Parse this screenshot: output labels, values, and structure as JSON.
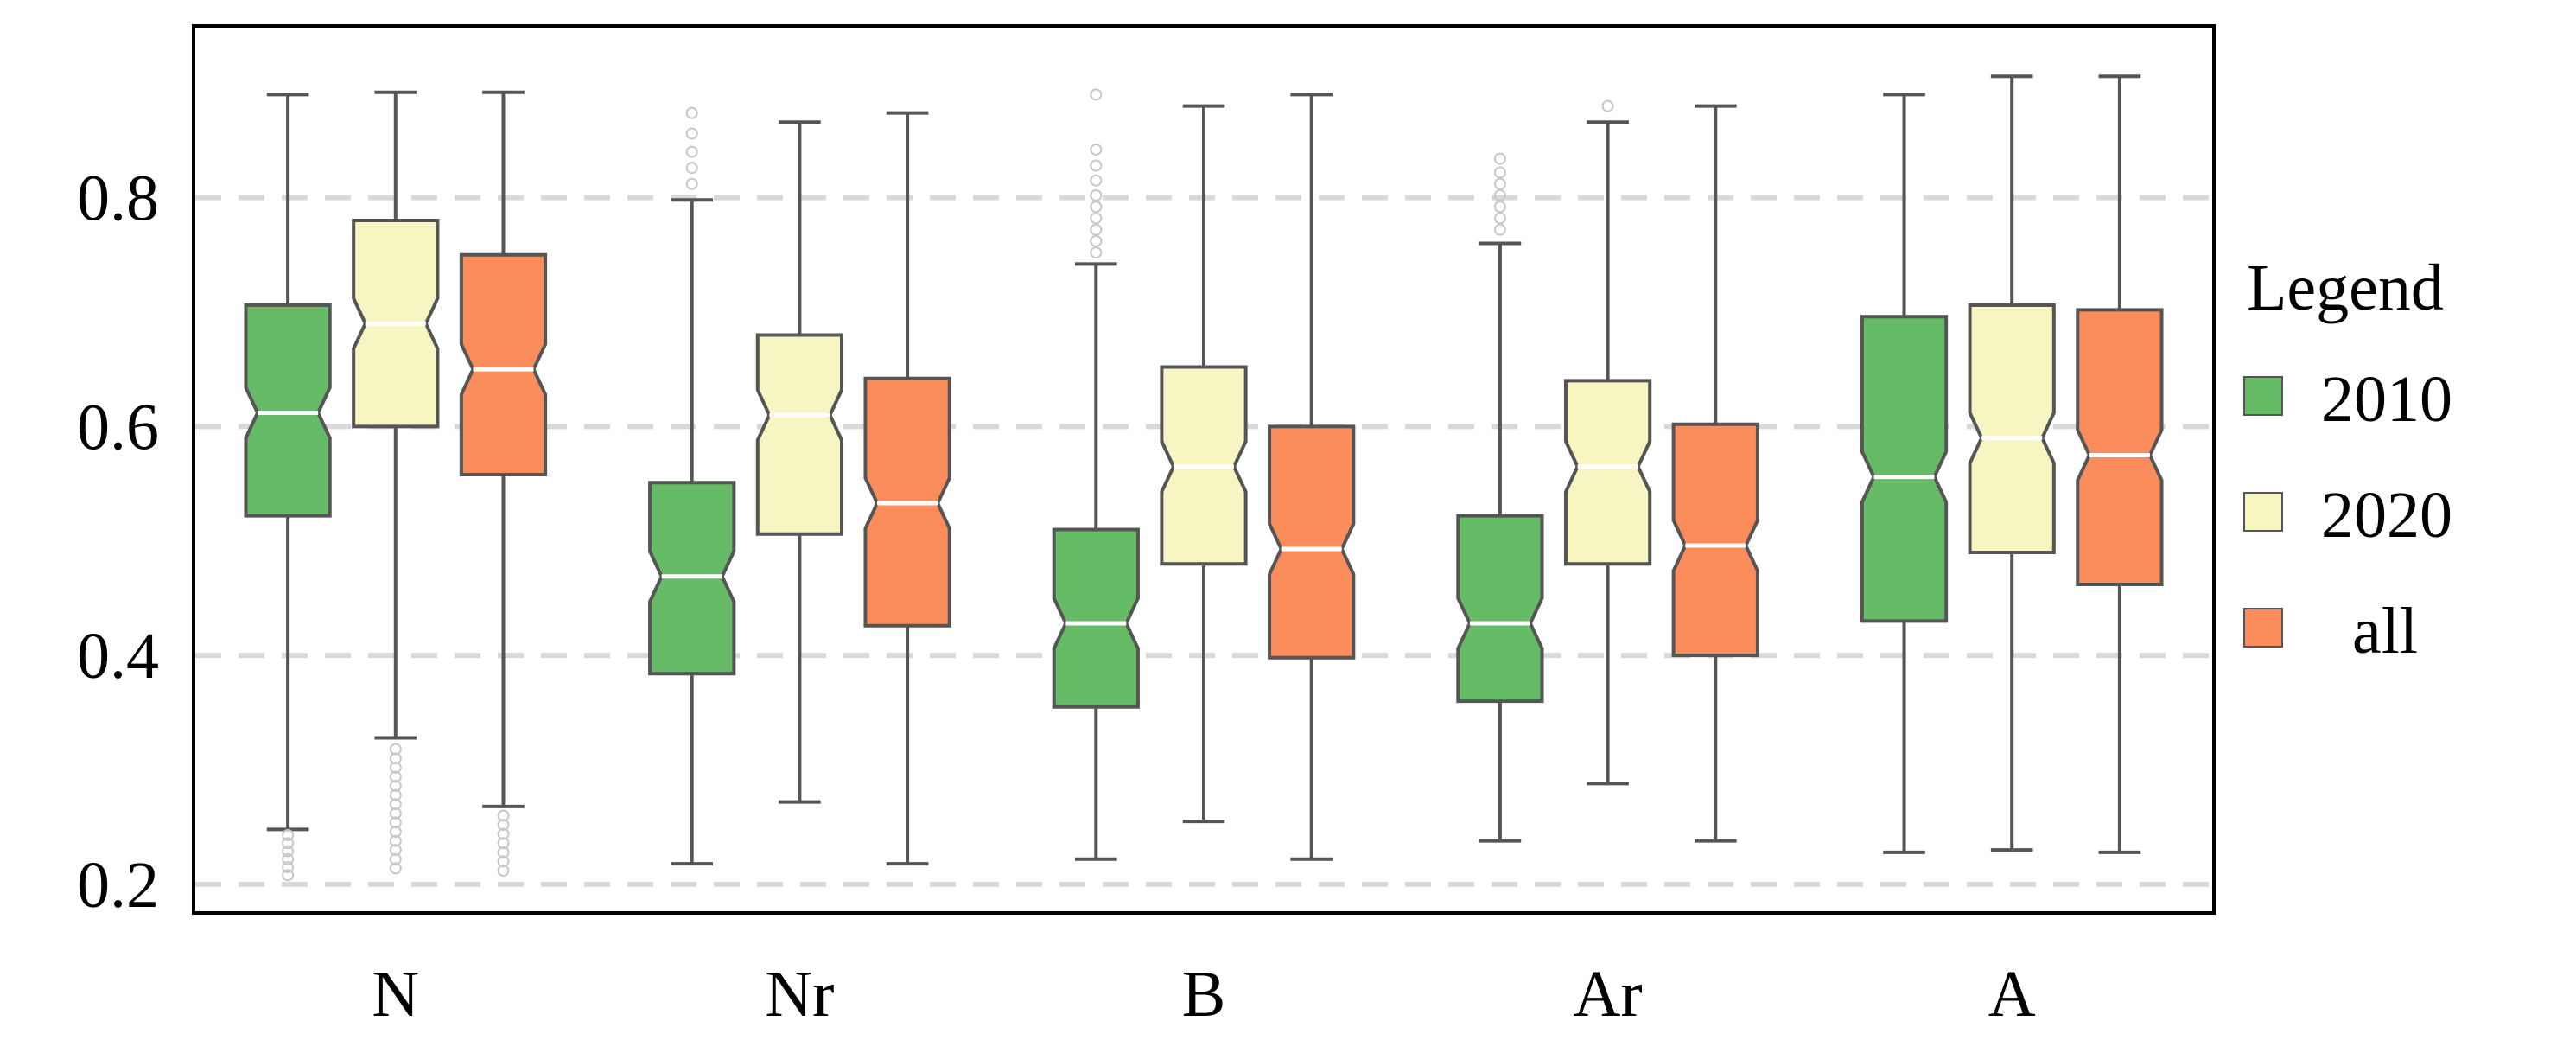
{
  "chart_data": {
    "type": "boxplot",
    "notched": true,
    "categories": [
      "N",
      "Nr",
      "B",
      "Ar",
      "A"
    ],
    "y_ticks": [
      "0.2",
      "0.4",
      "0.6",
      "0.8"
    ],
    "ylim": [
      0.175,
      0.95
    ],
    "grid": "horizontal dashed",
    "legend": {
      "title": "Legend",
      "placement": "right, outside plot",
      "entries": [
        "2010",
        "2020",
        "all"
      ]
    },
    "series": [
      {
        "name": "2010",
        "color": "#66bb66",
        "boxes": [
          {
            "whislo": 0.248,
            "q1": 0.522,
            "med": 0.612,
            "q3": 0.706,
            "whishi": 0.89,
            "fliers": [
              0.243,
              0.236,
              0.229,
              0.222,
              0.215,
              0.208
            ]
          },
          {
            "whislo": 0.218,
            "q1": 0.384,
            "med": 0.469,
            "q3": 0.551,
            "whishi": 0.798,
            "fliers": [
              0.812,
              0.826,
              0.84,
              0.856,
              0.874
            ]
          },
          {
            "whislo": 0.222,
            "q1": 0.355,
            "med": 0.428,
            "q3": 0.51,
            "whishi": 0.742,
            "fliers": [
              0.752,
              0.762,
              0.772,
              0.782,
              0.792,
              0.802,
              0.815,
              0.828,
              0.842,
              0.89
            ]
          },
          {
            "whislo": 0.238,
            "q1": 0.36,
            "med": 0.428,
            "q3": 0.522,
            "whishi": 0.76,
            "fliers": [
              0.772,
              0.782,
              0.792,
              0.802,
              0.812,
              0.822,
              0.834
            ]
          },
          {
            "whislo": 0.228,
            "q1": 0.43,
            "med": 0.556,
            "q3": 0.696,
            "whishi": 0.89,
            "fliers": []
          }
        ]
      },
      {
        "name": "2020",
        "color": "#f7f5c2",
        "boxes": [
          {
            "whislo": 0.328,
            "q1": 0.6,
            "med": 0.69,
            "q3": 0.78,
            "whishi": 0.892,
            "fliers": [
              0.318,
              0.31,
              0.302,
              0.294,
              0.286,
              0.278,
              0.27,
              0.262,
              0.254,
              0.246,
              0.238,
              0.23,
              0.222,
              0.214
            ]
          },
          {
            "whislo": 0.272,
            "q1": 0.506,
            "med": 0.61,
            "q3": 0.68,
            "whishi": 0.866,
            "fliers": []
          },
          {
            "whislo": 0.255,
            "q1": 0.48,
            "med": 0.565,
            "q3": 0.652,
            "whishi": 0.88,
            "fliers": []
          },
          {
            "whislo": 0.288,
            "q1": 0.48,
            "med": 0.565,
            "q3": 0.64,
            "whishi": 0.866,
            "fliers": [
              0.88
            ]
          },
          {
            "whislo": 0.23,
            "q1": 0.49,
            "med": 0.59,
            "q3": 0.706,
            "whishi": 0.906,
            "fliers": []
          }
        ]
      },
      {
        "name": "all",
        "color": "#fb8d5d",
        "boxes": [
          {
            "whislo": 0.268,
            "q1": 0.558,
            "med": 0.65,
            "q3": 0.75,
            "whishi": 0.892,
            "fliers": [
              0.26,
              0.252,
              0.244,
              0.236,
              0.228,
              0.22,
              0.212
            ]
          },
          {
            "whislo": 0.218,
            "q1": 0.426,
            "med": 0.533,
            "q3": 0.642,
            "whishi": 0.874,
            "fliers": []
          },
          {
            "whislo": 0.222,
            "q1": 0.398,
            "med": 0.493,
            "q3": 0.6,
            "whishi": 0.89,
            "fliers": []
          },
          {
            "whislo": 0.238,
            "q1": 0.4,
            "med": 0.496,
            "q3": 0.602,
            "whishi": 0.88,
            "fliers": []
          },
          {
            "whislo": 0.228,
            "q1": 0.462,
            "med": 0.575,
            "q3": 0.702,
            "whishi": 0.906,
            "fliers": []
          }
        ]
      }
    ]
  }
}
